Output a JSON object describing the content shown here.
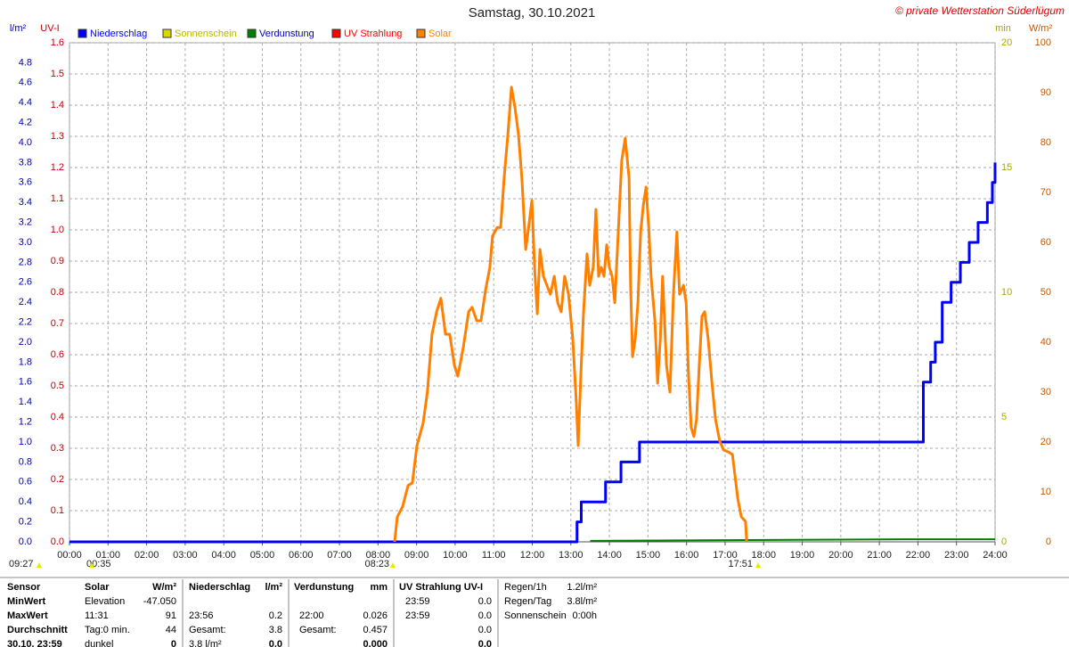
{
  "chart_data": {
    "type": "line",
    "title": "Samstag, 30.10.2021",
    "watermark": "© private Wetterstation Süderlügum",
    "grid": true,
    "xlim": [
      0,
      24
    ],
    "xticks": [
      {
        "value": 0,
        "label": "00:00"
      },
      {
        "value": 1,
        "label": "01:00"
      },
      {
        "value": 2,
        "label": "02:00"
      },
      {
        "value": 3,
        "label": "03:00"
      },
      {
        "value": 4,
        "label": "04:00"
      },
      {
        "value": 5,
        "label": "05:00"
      },
      {
        "value": 6,
        "label": "06:00"
      },
      {
        "value": 7,
        "label": "07:00"
      },
      {
        "value": 8,
        "label": "08:00"
      },
      {
        "value": 9,
        "label": "09:00"
      },
      {
        "value": 10,
        "label": "10:00"
      },
      {
        "value": 11,
        "label": "11:00"
      },
      {
        "value": 12,
        "label": "12:00"
      },
      {
        "value": 13,
        "label": "13:00"
      },
      {
        "value": 14,
        "label": "14:00"
      },
      {
        "value": 15,
        "label": "15:00"
      },
      {
        "value": 16,
        "label": "16:00"
      },
      {
        "value": 17,
        "label": "17:00"
      },
      {
        "value": 18,
        "label": "18:00"
      },
      {
        "value": 19,
        "label": "19:00"
      },
      {
        "value": 20,
        "label": "20:00"
      },
      {
        "value": 21,
        "label": "21:00"
      },
      {
        "value": 22,
        "label": "22:00"
      },
      {
        "value": 23,
        "label": "23:00"
      },
      {
        "value": 24,
        "label": "24:00"
      }
    ],
    "axes": [
      {
        "label": "l/m²",
        "color": "#0000b0",
        "lim": [
          0,
          5
        ],
        "ticks": [
          {
            "value": 0,
            "label": "0.0"
          },
          0.2,
          0.4,
          0.6,
          0.8,
          {
            "value": 1,
            "label": "1.0"
          },
          1.2,
          1.4,
          1.6,
          1.8,
          {
            "value": 2,
            "label": "2.0"
          },
          2.2,
          2.4,
          2.6,
          2.8,
          {
            "value": 3,
            "label": "3.0"
          },
          3.2,
          3.4,
          3.6,
          3.8,
          {
            "value": 4,
            "label": "4.0"
          },
          4.2,
          4.4,
          4.6,
          4.8
        ]
      },
      {
        "label": "UV-I",
        "color": "#c00000",
        "lim": [
          0,
          1.6
        ],
        "ticks": [
          {
            "value": 0,
            "label": "0.0"
          },
          0.1,
          0.2,
          0.3,
          0.4,
          0.5,
          0.6,
          0.7,
          0.8,
          0.9,
          {
            "value": 1,
            "label": "1.0"
          },
          1.1,
          1.2,
          1.3,
          1.4,
          1.5,
          1.6
        ]
      },
      {
        "label": "min",
        "color": "#a8a800",
        "lim": [
          0,
          20
        ],
        "ticks": [
          0,
          5,
          10,
          15,
          20
        ]
      },
      {
        "label": "W/m²",
        "color": "#c05800",
        "lim": [
          0,
          100
        ],
        "ticks": [
          0,
          10,
          20,
          30,
          40,
          50,
          60,
          70,
          80,
          90,
          100
        ]
      }
    ],
    "series": [
      {
        "name": "Niederschlag",
        "color": "#0000ff",
        "axis": 0,
        "step": true,
        "x": [
          0,
          13.16,
          13.27,
          13.9,
          14.3,
          14.78,
          22.14,
          22.33,
          22.45,
          22.63,
          22.86,
          23.1,
          23.33,
          23.56,
          23.8,
          23.93,
          24
        ],
        "values": [
          0,
          0.2,
          0.4,
          0.6,
          0.8,
          1.0,
          1.6,
          1.8,
          2.0,
          2.4,
          2.6,
          2.8,
          3.0,
          3.2,
          3.4,
          3.6,
          3.8
        ]
      },
      {
        "name": "Sonnenschein",
        "color": "#d8d800",
        "axis": 2,
        "x": [],
        "values": []
      },
      {
        "name": "Verdunstung",
        "color": "#008000",
        "axis": 0,
        "x": [
          13.5,
          22,
          24
        ],
        "values": [
          0.01,
          0.026,
          0.026
        ]
      },
      {
        "name": "UV Strahlung",
        "color": "#ff0000",
        "axis": 1,
        "x": [],
        "values": []
      },
      {
        "name": "Solar",
        "color": "#ff8000",
        "axis": 3,
        "x": [
          8.43,
          8.5,
          8.64,
          8.78,
          8.89,
          9.01,
          9.17,
          9.28,
          9.4,
          9.52,
          9.63,
          9.75,
          9.86,
          9.98,
          10.07,
          10.21,
          10.35,
          10.44,
          10.56,
          10.67,
          10.79,
          10.9,
          10.97,
          11.09,
          11.18,
          11.27,
          11.37,
          11.46,
          11.55,
          11.64,
          11.73,
          11.83,
          11.92,
          11.99,
          12.06,
          12.13,
          12.2,
          12.29,
          12.38,
          12.47,
          12.57,
          12.66,
          12.75,
          12.84,
          12.94,
          13.05,
          13.14,
          13.19,
          13.26,
          13.33,
          13.42,
          13.49,
          13.58,
          13.65,
          13.72,
          13.79,
          13.86,
          13.93,
          14.0,
          14.07,
          14.14,
          14.23,
          14.32,
          14.41,
          14.51,
          14.55,
          14.6,
          14.67,
          14.74,
          14.81,
          14.88,
          14.95,
          15.02,
          15.08,
          15.18,
          15.25,
          15.32,
          15.38,
          15.48,
          15.57,
          15.66,
          15.75,
          15.82,
          15.92,
          15.99,
          16.05,
          16.12,
          16.19,
          16.26,
          16.33,
          16.4,
          16.47,
          16.56,
          16.66,
          16.75,
          16.86,
          16.96,
          17.09,
          17.19,
          17.33,
          17.42,
          17.53,
          17.56
        ],
        "values": [
          0,
          5.0,
          7.1,
          11.3,
          11.8,
          19.3,
          23.8,
          30.0,
          41.6,
          46.1,
          48.8,
          41.6,
          41.6,
          35.4,
          33.2,
          38.9,
          46.1,
          47.0,
          44.3,
          44.3,
          50.5,
          55.0,
          61.3,
          63.0,
          63.0,
          72.9,
          81.8,
          91.1,
          87.1,
          81.8,
          72.9,
          58.6,
          63.9,
          68.4,
          55.0,
          45.7,
          58.6,
          53.2,
          51.4,
          49.6,
          53.2,
          47.9,
          46.1,
          53.2,
          49.6,
          40.7,
          28.2,
          19.3,
          33.6,
          46.1,
          57.7,
          51.4,
          55.0,
          66.6,
          53.2,
          55.0,
          53.2,
          59.5,
          55.0,
          53.2,
          47.9,
          62.1,
          76.4,
          80.9,
          72.9,
          51.4,
          37.1,
          40.7,
          47.9,
          62.1,
          67.5,
          71.1,
          63.0,
          53.2,
          44.3,
          31.8,
          40.7,
          53.2,
          35.4,
          30.0,
          49.6,
          62.1,
          49.6,
          51.4,
          47.9,
          33.6,
          22.9,
          21.1,
          24.6,
          35.4,
          45.2,
          46.1,
          40.7,
          31.8,
          24.6,
          20.2,
          18.4,
          18.0,
          17.5,
          8.6,
          5.0,
          4.1,
          0
        ]
      }
    ],
    "annotations": [
      "09:27",
      "00:35",
      "08:23",
      "17:51"
    ]
  },
  "table": {
    "header": [
      "Sensor",
      "Solar",
      "W/m²",
      "Niederschlag",
      "l/m²",
      "Verdunstung",
      "mm",
      "UV Strahlung UV-I"
    ],
    "rows": [
      [
        "MinWert",
        "Elevation",
        "-47.050",
        null,
        null,
        null,
        null,
        "23:59",
        "0.0"
      ],
      [
        "MaxWert",
        "11:31",
        "91",
        "23:56",
        "0.2",
        "22:00",
        "0.026",
        "23:59",
        "0.0"
      ],
      [
        "Durchschnitt",
        "Tag:0 min.",
        "44",
        "Gesamt:",
        "3.8",
        "Gesamt:",
        "0.457",
        null,
        "0.0"
      ],
      [
        "30.10. 23:59",
        "dunkel",
        "0",
        "3.8 l/m²",
        "0.0",
        null,
        "0.000",
        null,
        "0.0"
      ]
    ],
    "side": [
      [
        "Regen/1h",
        "1.2l/m²"
      ],
      [
        "Regen/Tag",
        "3.8l/m²"
      ],
      [
        "Sonnenschein",
        "0:00h"
      ]
    ]
  }
}
